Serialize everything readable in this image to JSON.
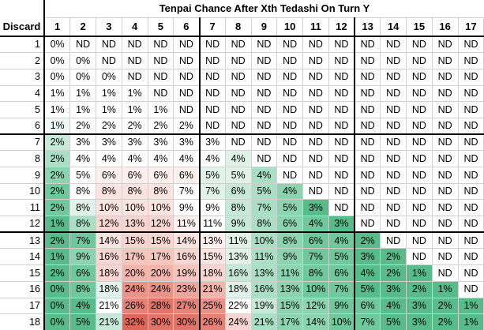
{
  "title": "Tenpai Chance After Xth Tedashi On Turn Y",
  "corner_label": "Discard",
  "columns": [
    "1",
    "2",
    "3",
    "4",
    "5",
    "6",
    "7",
    "8",
    "9",
    "10",
    "11",
    "12",
    "13",
    "14",
    "15",
    "16",
    "17"
  ],
  "row_labels": [
    "1",
    "2",
    "3",
    "4",
    "5",
    "6",
    "7",
    "8",
    "9",
    "10",
    "11",
    "12",
    "13",
    "14",
    "15",
    "16",
    "17",
    "18"
  ],
  "chart_data": {
    "type": "heatmap",
    "title": "Tenpai Chance After Xth Tedashi On Turn Y",
    "xlabel": "Xth Tedashi",
    "ylabel": "Discard (Turn Y)",
    "nd_label": "ND",
    "unit": "%",
    "legend": "green = low within row context, white = neutral, red = high; ND = no data",
    "values": [
      [
        0,
        null,
        null,
        null,
        null,
        null,
        null,
        null,
        null,
        null,
        null,
        null,
        null,
        null,
        null,
        null,
        null
      ],
      [
        0,
        0,
        null,
        null,
        null,
        null,
        null,
        null,
        null,
        null,
        null,
        null,
        null,
        null,
        null,
        null,
        null
      ],
      [
        0,
        0,
        0,
        null,
        null,
        null,
        null,
        null,
        null,
        null,
        null,
        null,
        null,
        null,
        null,
        null,
        null
      ],
      [
        1,
        1,
        1,
        1,
        null,
        null,
        null,
        null,
        null,
        null,
        null,
        null,
        null,
        null,
        null,
        null,
        null
      ],
      [
        1,
        1,
        1,
        1,
        1,
        null,
        null,
        null,
        null,
        null,
        null,
        null,
        null,
        null,
        null,
        null,
        null
      ],
      [
        1,
        2,
        2,
        2,
        2,
        2,
        null,
        null,
        null,
        null,
        null,
        null,
        null,
        null,
        null,
        null,
        null
      ],
      [
        2,
        3,
        3,
        3,
        3,
        3,
        3,
        null,
        null,
        null,
        null,
        null,
        null,
        null,
        null,
        null,
        null
      ],
      [
        2,
        4,
        4,
        4,
        4,
        4,
        4,
        4,
        null,
        null,
        null,
        null,
        null,
        null,
        null,
        null,
        null
      ],
      [
        2,
        5,
        6,
        6,
        6,
        6,
        5,
        5,
        4,
        null,
        null,
        null,
        null,
        null,
        null,
        null,
        null
      ],
      [
        2,
        8,
        8,
        8,
        8,
        7,
        7,
        6,
        5,
        4,
        null,
        null,
        null,
        null,
        null,
        null,
        null
      ],
      [
        2,
        8,
        10,
        10,
        10,
        9,
        9,
        8,
        7,
        5,
        3,
        null,
        null,
        null,
        null,
        null,
        null
      ],
      [
        1,
        8,
        12,
        13,
        12,
        11,
        11,
        9,
        8,
        6,
        4,
        3,
        null,
        null,
        null,
        null,
        null
      ],
      [
        2,
        7,
        14,
        15,
        15,
        14,
        13,
        11,
        10,
        8,
        6,
        4,
        2,
        null,
        null,
        null,
        null
      ],
      [
        1,
        9,
        16,
        17,
        17,
        16,
        15,
        13,
        11,
        9,
        7,
        5,
        3,
        2,
        null,
        null,
        null
      ],
      [
        2,
        6,
        18,
        20,
        20,
        19,
        18,
        16,
        13,
        11,
        8,
        6,
        4,
        2,
        1,
        null,
        null
      ],
      [
        0,
        8,
        18,
        24,
        24,
        23,
        21,
        18,
        16,
        13,
        10,
        7,
        5,
        3,
        2,
        1,
        null
      ],
      [
        0,
        4,
        21,
        26,
        28,
        27,
        25,
        22,
        19,
        15,
        12,
        9,
        6,
        4,
        3,
        2,
        1
      ],
      [
        0,
        5,
        21,
        32,
        30,
        30,
        26,
        24,
        21,
        17,
        14,
        10,
        7,
        5,
        3,
        2,
        1
      ]
    ]
  },
  "palette": {
    "w": "#ffffff",
    "g0": "#f0f9f5",
    "g1": "#e0f2ea",
    "g2": "#c6e9d8",
    "g3": "#a9dfc4",
    "g4": "#8cd4b0",
    "g5": "#6fc99c",
    "g6": "#57bb8a",
    "p1": "#fdf0ee",
    "p2": "#fbe3e0",
    "p3": "#f8d5d0",
    "p4": "#f5c5be",
    "p5": "#f2b5ac",
    "p6": "#eda69c",
    "p7": "#e89288",
    "p8": "#e48277",
    "p9": "#e07468",
    "p10": "#db675a"
  },
  "tints": [
    [
      "w",
      "w",
      "w",
      "w",
      "w",
      "w",
      "w",
      "w",
      "w",
      "w",
      "w",
      "w",
      "w",
      "w",
      "w",
      "w",
      "w"
    ],
    [
      "w",
      "w",
      "w",
      "w",
      "w",
      "w",
      "w",
      "w",
      "w",
      "w",
      "w",
      "w",
      "w",
      "w",
      "w",
      "w",
      "w"
    ],
    [
      "w",
      "w",
      "w",
      "w",
      "w",
      "w",
      "w",
      "w",
      "w",
      "w",
      "w",
      "w",
      "w",
      "w",
      "w",
      "w",
      "w"
    ],
    [
      "w",
      "w",
      "w",
      "w",
      "w",
      "w",
      "w",
      "w",
      "w",
      "w",
      "w",
      "w",
      "w",
      "w",
      "w",
      "w",
      "w"
    ],
    [
      "w",
      "w",
      "w",
      "w",
      "w",
      "w",
      "w",
      "w",
      "w",
      "w",
      "w",
      "w",
      "w",
      "w",
      "w",
      "w",
      "w"
    ],
    [
      "g0",
      "w",
      "w",
      "w",
      "w",
      "w",
      "w",
      "w",
      "w",
      "w",
      "w",
      "w",
      "w",
      "w",
      "w",
      "w",
      "w"
    ],
    [
      "g2",
      "w",
      "w",
      "w",
      "w",
      "w",
      "w",
      "w",
      "w",
      "w",
      "w",
      "w",
      "w",
      "w",
      "w",
      "w",
      "w"
    ],
    [
      "g3",
      "w",
      "w",
      "w",
      "w",
      "w",
      "w",
      "g1",
      "w",
      "w",
      "w",
      "w",
      "w",
      "w",
      "w",
      "w",
      "w"
    ],
    [
      "g4",
      "w",
      "p1",
      "p1",
      "p1",
      "p1",
      "g1",
      "g1",
      "g3",
      "w",
      "w",
      "w",
      "w",
      "w",
      "w",
      "w",
      "w"
    ],
    [
      "g5",
      "w",
      "p2",
      "p2",
      "p2",
      "w",
      "g1",
      "g2",
      "g3",
      "g4",
      "w",
      "w",
      "w",
      "w",
      "w",
      "w",
      "w"
    ],
    [
      "g5",
      "g1",
      "p2",
      "p2",
      "p2",
      "w",
      "w",
      "g2",
      "g3",
      "g4",
      "g6",
      "w",
      "w",
      "w",
      "w",
      "w",
      "w"
    ],
    [
      "g6",
      "g3",
      "p3",
      "p3",
      "p3",
      "p1",
      "w",
      "g2",
      "g3",
      "g4",
      "g5",
      "g6",
      "w",
      "w",
      "w",
      "w",
      "w"
    ],
    [
      "g6",
      "g5",
      "p2",
      "p3",
      "p3",
      "p2",
      "p1",
      "g1",
      "g3",
      "g4",
      "g5",
      "g5",
      "g6",
      "w",
      "w",
      "w",
      "w"
    ],
    [
      "g6",
      "g4",
      "p3",
      "p4",
      "p4",
      "p3",
      "p2",
      "g1",
      "g3",
      "g4",
      "g5",
      "g5",
      "g6",
      "g6",
      "w",
      "w",
      "w"
    ],
    [
      "g6",
      "g5",
      "p3",
      "p5",
      "p5",
      "p4",
      "p3",
      "g2",
      "g3",
      "g4",
      "g5",
      "g5",
      "g6",
      "g6",
      "g6",
      "w",
      "w"
    ],
    [
      "g6",
      "g5",
      "g1",
      "p7",
      "p7",
      "p6",
      "p5",
      "g1",
      "g3",
      "g4",
      "g5",
      "g5",
      "g6",
      "g6",
      "g6",
      "g6",
      "w"
    ],
    [
      "g6",
      "g6",
      "w",
      "p8",
      "p9",
      "p8",
      "p7",
      "w",
      "g2",
      "g4",
      "g4",
      "g5",
      "g5",
      "g6",
      "g6",
      "g6",
      "g6"
    ],
    [
      "g6",
      "g6",
      "g2",
      "p10",
      "p9",
      "p9",
      "p8",
      "p3",
      "g3",
      "g4",
      "g4",
      "g5",
      "g5",
      "g6",
      "g6",
      "g6",
      "g6"
    ]
  ],
  "grid_color": "#d0d0d0",
  "thick_border_color": "#000000"
}
